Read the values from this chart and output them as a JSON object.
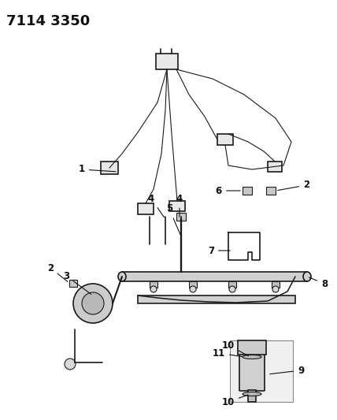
{
  "title": "7114 3350",
  "bg_color": "#ffffff",
  "line_color": "#1a1a1a",
  "label_color": "#111111",
  "title_fontsize": 13,
  "label_fontsize": 8.5
}
